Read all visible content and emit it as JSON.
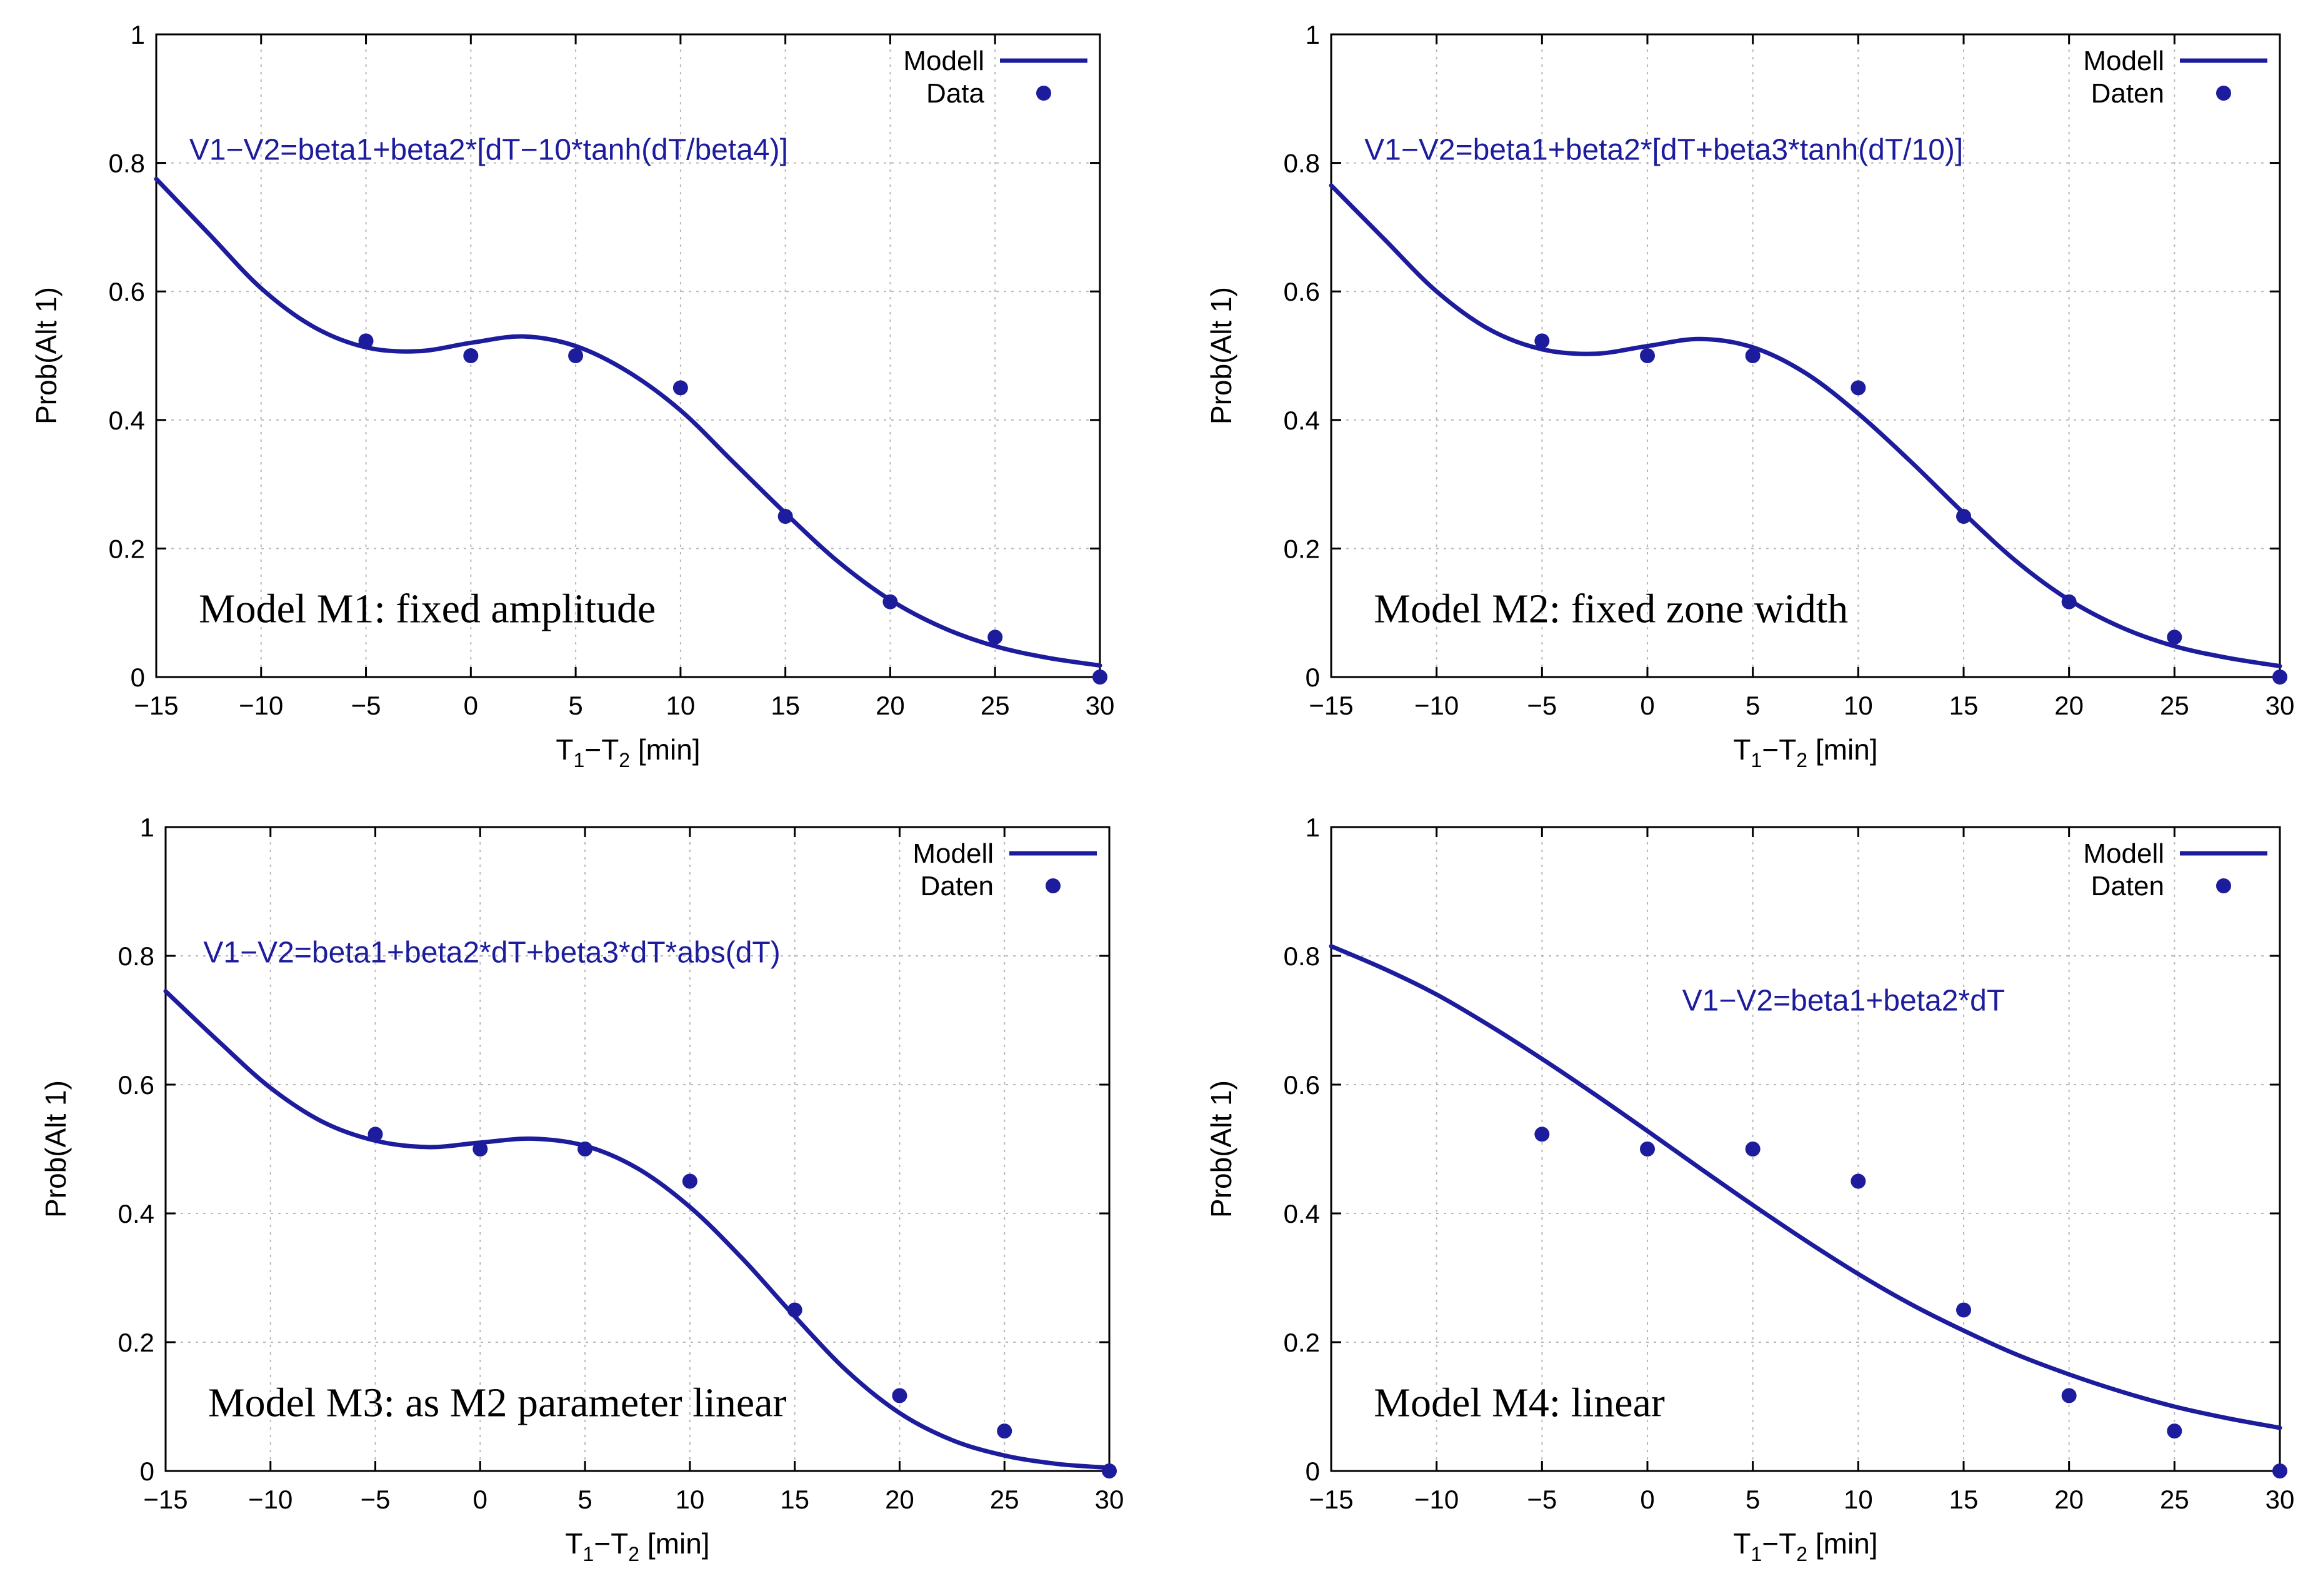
{
  "colors": {
    "series": "#1c1c9c",
    "grid": "#b8b8b8",
    "axis": "#000000"
  },
  "chart_data": [
    {
      "type": "line",
      "model_label": "Model M1: fixed amplitude",
      "formula": "V1−V2=beta1+beta2*[dT−10*tanh(dT/beta4)]",
      "xlabel": {
        "main": "T",
        "sub1": "1",
        "dash": "−T",
        "sub2": "2",
        "unit": " [min]"
      },
      "ylabel": "Prob(Alt 1)",
      "xlim": [
        -15,
        30
      ],
      "ylim": [
        0,
        1
      ],
      "x_ticks": [
        -15,
        -10,
        -5,
        0,
        5,
        10,
        15,
        20,
        25,
        30
      ],
      "x_tick_labels": [
        "−15",
        "−10",
        "−5",
        "0",
        "5",
        "10",
        "15",
        "20",
        "25",
        "30"
      ],
      "y_ticks": [
        0,
        0.2,
        0.4,
        0.6,
        0.8,
        1
      ],
      "y_tick_labels": [
        "0",
        "0.2",
        "0.4",
        "0.6",
        "0.8",
        "1"
      ],
      "grid": true,
      "legend": {
        "position": "top-right",
        "entries": [
          "Modell",
          "Data"
        ]
      },
      "series": [
        {
          "name": "Modell",
          "kind": "line",
          "x": [
            -15,
            -12.5,
            -10,
            -7.5,
            -5,
            -2.5,
            0,
            2.5,
            5,
            7.5,
            10,
            12.5,
            15,
            17.5,
            20,
            22.5,
            25,
            27.5,
            30
          ],
          "y": [
            0.775,
            0.69,
            0.605,
            0.545,
            0.513,
            0.507,
            0.52,
            0.53,
            0.515,
            0.475,
            0.415,
            0.335,
            0.255,
            0.18,
            0.12,
            0.077,
            0.048,
            0.03,
            0.018
          ]
        },
        {
          "name": "Data",
          "kind": "scatter",
          "x": [
            -5,
            0,
            5,
            10,
            15,
            20,
            25,
            30
          ],
          "y": [
            0.523,
            0.5,
            0.5,
            0.45,
            0.25,
            0.117,
            0.062,
            0.0
          ]
        }
      ]
    },
    {
      "type": "line",
      "model_label": "Model M2: fixed zone width",
      "formula": "V1−V2=beta1+beta2*[dT+beta3*tanh(dT/10)]",
      "xlabel": {
        "main": "T",
        "sub1": "1",
        "dash": "−T",
        "sub2": "2",
        "unit": " [min]"
      },
      "ylabel": "Prob(Alt 1)",
      "xlim": [
        -15,
        30
      ],
      "ylim": [
        0,
        1
      ],
      "x_ticks": [
        -15,
        -10,
        -5,
        0,
        5,
        10,
        15,
        20,
        25,
        30
      ],
      "x_tick_labels": [
        "−15",
        "−10",
        "−5",
        "0",
        "5",
        "10",
        "15",
        "20",
        "25",
        "30"
      ],
      "y_ticks": [
        0,
        0.2,
        0.4,
        0.6,
        0.8,
        1
      ],
      "y_tick_labels": [
        "0",
        "0.2",
        "0.4",
        "0.6",
        "0.8",
        "1"
      ],
      "grid": true,
      "legend": {
        "position": "top-right",
        "entries": [
          "Modell",
          "Daten"
        ]
      },
      "series": [
        {
          "name": "Modell",
          "kind": "line",
          "x": [
            -15,
            -12.5,
            -10,
            -7.5,
            -5,
            -2.5,
            0,
            2.5,
            5,
            7.5,
            10,
            12.5,
            15,
            17.5,
            20,
            22.5,
            25,
            27.5,
            30
          ],
          "y": [
            0.765,
            0.682,
            0.6,
            0.541,
            0.51,
            0.503,
            0.515,
            0.526,
            0.513,
            0.473,
            0.41,
            0.335,
            0.255,
            0.18,
            0.12,
            0.077,
            0.048,
            0.03,
            0.017
          ]
        },
        {
          "name": "Daten",
          "kind": "scatter",
          "x": [
            -5,
            0,
            5,
            10,
            15,
            20,
            25,
            30
          ],
          "y": [
            0.523,
            0.5,
            0.5,
            0.45,
            0.25,
            0.117,
            0.062,
            0.0
          ]
        }
      ]
    },
    {
      "type": "line",
      "model_label": "Model M3: as M2 parameter linear",
      "formula": "V1−V2=beta1+beta2*dT+beta3*dT*abs(dT)",
      "xlabel": {
        "main": "T",
        "sub1": "1",
        "dash": "−T",
        "sub2": "2",
        "unit": " [min]"
      },
      "ylabel": "Prob(Alt 1)",
      "xlim": [
        -15,
        30
      ],
      "ylim": [
        0,
        1
      ],
      "x_ticks": [
        -15,
        -10,
        -5,
        0,
        5,
        10,
        15,
        20,
        25,
        30
      ],
      "x_tick_labels": [
        "−15",
        "−10",
        "−5",
        "0",
        "5",
        "10",
        "15",
        "20",
        "25",
        "30"
      ],
      "y_ticks": [
        0,
        0.2,
        0.4,
        0.6,
        0.8,
        1
      ],
      "y_tick_labels": [
        "0",
        "0.2",
        "0.4",
        "0.6",
        "0.8",
        "1"
      ],
      "grid": true,
      "legend": {
        "position": "top-right",
        "entries": [
          "Modell",
          "Daten"
        ]
      },
      "series": [
        {
          "name": "Modell",
          "kind": "line",
          "x": [
            -15,
            -12.5,
            -10,
            -7.5,
            -5,
            -2.5,
            0,
            2.5,
            5,
            7.5,
            10,
            12.5,
            15,
            17.5,
            20,
            22.5,
            25,
            27.5,
            30
          ],
          "y": [
            0.745,
            0.668,
            0.595,
            0.542,
            0.513,
            0.503,
            0.51,
            0.516,
            0.505,
            0.47,
            0.41,
            0.33,
            0.24,
            0.155,
            0.09,
            0.048,
            0.024,
            0.011,
            0.005
          ]
        },
        {
          "name": "Daten",
          "kind": "scatter",
          "x": [
            -5,
            0,
            5,
            10,
            15,
            20,
            25,
            30
          ],
          "y": [
            0.523,
            0.5,
            0.5,
            0.45,
            0.25,
            0.117,
            0.062,
            0.0
          ]
        }
      ]
    },
    {
      "type": "line",
      "model_label": "Model M4: linear",
      "formula": "V1−V2=beta1+beta2*dT",
      "xlabel": {
        "main": "T",
        "sub1": "1",
        "dash": "−T",
        "sub2": "2",
        "unit": " [min]"
      },
      "ylabel": "Prob(Alt 1)",
      "xlim": [
        -15,
        30
      ],
      "ylim": [
        0,
        1
      ],
      "x_ticks": [
        -15,
        -10,
        -5,
        0,
        5,
        10,
        15,
        20,
        25,
        30
      ],
      "x_tick_labels": [
        "−15",
        "−10",
        "−5",
        "0",
        "5",
        "10",
        "15",
        "20",
        "25",
        "30"
      ],
      "y_ticks": [
        0,
        0.2,
        0.4,
        0.6,
        0.8,
        1
      ],
      "y_tick_labels": [
        "0",
        "0.2",
        "0.4",
        "0.6",
        "0.8",
        "1"
      ],
      "grid": true,
      "legend": {
        "position": "top-right",
        "entries": [
          "Modell",
          "Daten"
        ]
      },
      "series": [
        {
          "name": "Modell",
          "kind": "line",
          "x": [
            -15,
            -12.5,
            -10,
            -7.5,
            -5,
            -2.5,
            0,
            2.5,
            5,
            7.5,
            10,
            12.5,
            15,
            17.5,
            20,
            22.5,
            25,
            27.5,
            30
          ],
          "y": [
            0.815,
            0.78,
            0.74,
            0.692,
            0.64,
            0.585,
            0.528,
            0.47,
            0.413,
            0.358,
            0.306,
            0.259,
            0.218,
            0.181,
            0.15,
            0.123,
            0.1,
            0.082,
            0.067
          ]
        },
        {
          "name": "Daten",
          "kind": "scatter",
          "x": [
            -5,
            0,
            5,
            10,
            15,
            20,
            25,
            30
          ],
          "y": [
            0.523,
            0.5,
            0.5,
            0.45,
            0.25,
            0.117,
            0.062,
            0.0
          ]
        }
      ]
    }
  ]
}
